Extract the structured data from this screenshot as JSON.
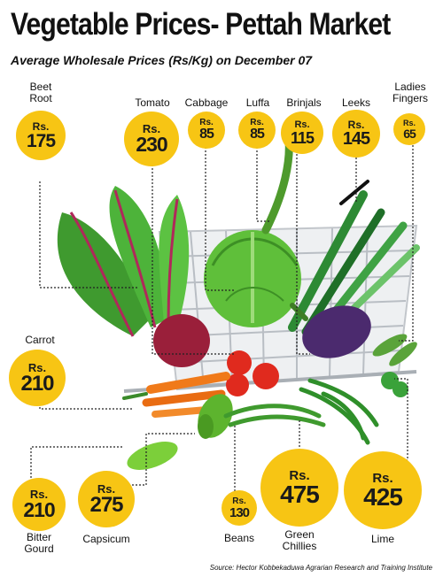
{
  "title": "Vegetable Prices- Pettah Market",
  "subtitle": "Average Wholesale Prices (Rs/Kg) on December 07",
  "currency": "Rs.",
  "items": [
    {
      "name_lines": [
        "Beet",
        "Root"
      ],
      "price": "175"
    },
    {
      "name_lines": [
        "Tomato"
      ],
      "price": "230"
    },
    {
      "name_lines": [
        "Cabbage"
      ],
      "price": "85"
    },
    {
      "name_lines": [
        "Luffa"
      ],
      "price": "85"
    },
    {
      "name_lines": [
        "Brinjals"
      ],
      "price": "115"
    },
    {
      "name_lines": [
        "Leeks"
      ],
      "price": "145"
    },
    {
      "name_lines": [
        "Ladies",
        "Fingers"
      ],
      "price": "65"
    },
    {
      "name_lines": [
        "Carrot"
      ],
      "price": "210"
    },
    {
      "name_lines": [
        "Bitter",
        "Gourd"
      ],
      "price": "210"
    },
    {
      "name_lines": [
        "Capsicum"
      ],
      "price": "275"
    },
    {
      "name_lines": [
        "Beans"
      ],
      "price": "130"
    },
    {
      "name_lines": [
        "Green",
        "Chillies"
      ],
      "price": "475"
    },
    {
      "name_lines": [
        "Lime"
      ],
      "price": "425"
    }
  ],
  "source": "Source: Hector Kobbekaduwa Agrarian Research and Training Institute",
  "colors": {
    "badge": "#f7c514",
    "text": "#111111"
  }
}
